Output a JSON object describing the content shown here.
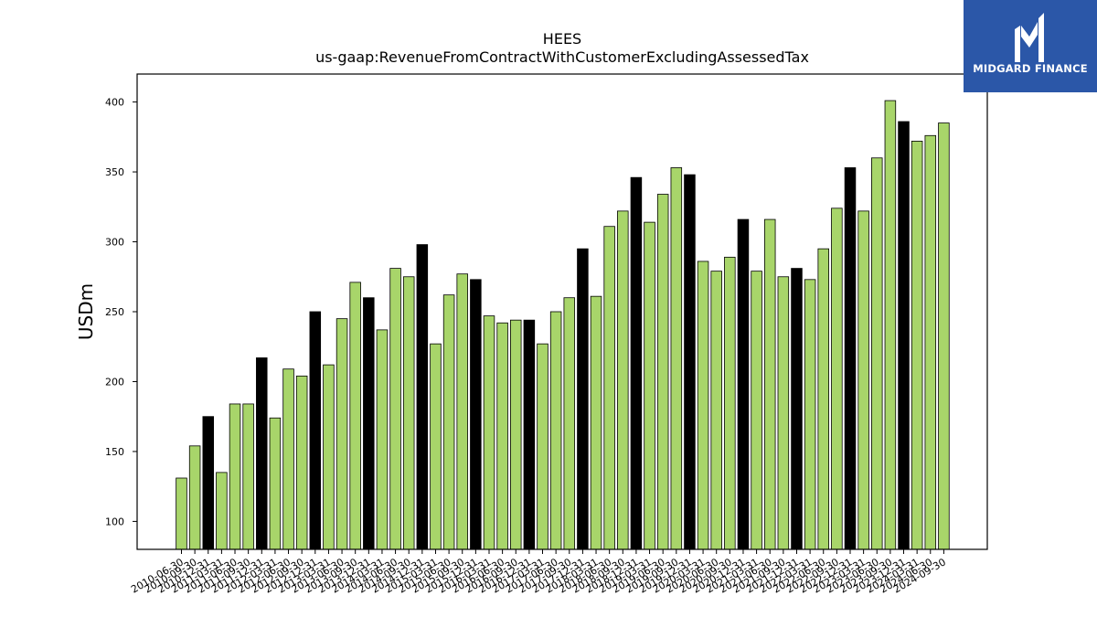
{
  "chart_data": {
    "type": "bar",
    "title": "HEES",
    "subtitle": "us-gaap:RevenueFromContractWithCustomerExcludingAssessedTax",
    "xlabel": "",
    "ylabel": "USDm",
    "ylim": [
      80,
      420
    ],
    "yticks": [
      100,
      150,
      200,
      250,
      300,
      350,
      400
    ],
    "colors": {
      "quarter": "#a8d56a",
      "annual": "#000000"
    },
    "categories": [
      "2010-06-30",
      "2010-09-30",
      "2010-12-31",
      "2011-03-31",
      "2011-06-30",
      "2011-09-30",
      "2011-12-31",
      "2012-03-31",
      "2012-06-30",
      "2012-09-30",
      "2012-12-31",
      "2013-03-31",
      "2013-06-30",
      "2013-09-30",
      "2013-12-31",
      "2014-03-31",
      "2014-06-30",
      "2014-09-30",
      "2014-12-31",
      "2015-03-31",
      "2015-06-30",
      "2015-09-30",
      "2015-12-31",
      "2016-03-31",
      "2016-06-30",
      "2016-09-30",
      "2016-12-31",
      "2017-03-31",
      "2017-06-30",
      "2017-09-30",
      "2017-12-31",
      "2018-03-31",
      "2018-06-30",
      "2018-09-30",
      "2018-12-31",
      "2019-03-31",
      "2019-06-30",
      "2019-09-30",
      "2019-12-31",
      "2020-03-31",
      "2020-06-30",
      "2020-09-30",
      "2020-12-31",
      "2021-03-31",
      "2021-06-30",
      "2021-09-30",
      "2021-12-31",
      "2022-03-31",
      "2022-06-30",
      "2022-09-30",
      "2022-12-31",
      "2023-03-31",
      "2023-06-30",
      "2023-09-30",
      "2023-12-31",
      "2024-03-31",
      "2024-06-30",
      "2024-09-30"
    ],
    "values": [
      131,
      154,
      175,
      135,
      184,
      184,
      217,
      174,
      209,
      204,
      250,
      212,
      245,
      271,
      260,
      237,
      281,
      275,
      298,
      227,
      262,
      277,
      273,
      247,
      242,
      244,
      244,
      227,
      250,
      260,
      295,
      261,
      311,
      322,
      346,
      314,
      334,
      353,
      348,
      286,
      279,
      289,
      316,
      279,
      316,
      275,
      281,
      273,
      295,
      324,
      353,
      322,
      360,
      401,
      386,
      372,
      376,
      385
    ],
    "annual": [
      false,
      false,
      true,
      false,
      false,
      false,
      true,
      false,
      false,
      false,
      true,
      false,
      false,
      false,
      true,
      false,
      false,
      false,
      true,
      false,
      false,
      false,
      true,
      false,
      false,
      false,
      true,
      false,
      false,
      false,
      true,
      false,
      false,
      false,
      true,
      false,
      false,
      false,
      true,
      false,
      false,
      false,
      true,
      false,
      false,
      false,
      true,
      false,
      false,
      false,
      true,
      false,
      false,
      false,
      true,
      false,
      false,
      false
    ]
  },
  "logo": {
    "text": "MIDGARD FINANCE"
  }
}
